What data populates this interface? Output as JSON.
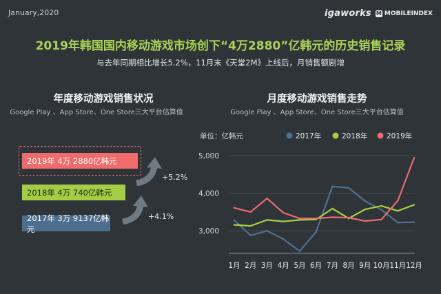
{
  "header": {
    "date": "January,2020",
    "brand_primary": "igaworks",
    "brand_badge": "M",
    "brand_secondary": "MOBILEINDEX"
  },
  "title": "2019年韩国国内移动游戏市场创下“4万2880”亿韩元的历史销售记录",
  "subtitle": "与去年同期相比增长5.2%，11月末《天堂2M》上线后，月销售额剧增",
  "left_panel": {
    "title": "年度移动游戏销售状况",
    "note": "Google Play 、App Store、One Store三大平台估算值",
    "bars": [
      {
        "label": "2019年 4万 2880亿韩元",
        "value": 42880,
        "color": "#f06b6b"
      },
      {
        "label": "2018年 4万 740亿韩元",
        "value": 40740,
        "color": "#a3cd45"
      },
      {
        "label": "2017年 3万 9137亿韩元",
        "value": 39137,
        "color": "#4d6e8f"
      }
    ],
    "growth": [
      "+5.2%",
      "+4.1%"
    ]
  },
  "right_panel": {
    "title": "月度移动游戏销售走势",
    "note": "Google Play 、App Store、One Store三大平台估算值"
  },
  "chart_data": {
    "type": "line",
    "unit_label": "单位：亿韩元",
    "legend_position": "top",
    "grid": true,
    "x": [
      "1月",
      "2月",
      "3月",
      "4月",
      "5月",
      "6月",
      "7月",
      "8月",
      "9月",
      "10月",
      "11月",
      "12月"
    ],
    "ylim": [
      2400,
      5200
    ],
    "yticks": [
      3000,
      4000,
      5000
    ],
    "ytick_labels": [
      "3,000",
      "4,000",
      "5,000"
    ],
    "series": [
      {
        "name": "2017年",
        "color": "#4f7191",
        "values": [
          3280,
          2880,
          3000,
          2780,
          2460,
          2970,
          4180,
          4140,
          3790,
          3560,
          3220,
          3230
        ]
      },
      {
        "name": "2018年",
        "color": "#a7d046",
        "values": [
          3160,
          3130,
          3290,
          3250,
          3290,
          3300,
          3590,
          3330,
          3570,
          3660,
          3530,
          3690
        ]
      },
      {
        "name": "2019年",
        "color": "#ee6b6f",
        "values": [
          3610,
          3500,
          3860,
          3480,
          3330,
          3330,
          3360,
          3350,
          3260,
          3300,
          3800,
          4940
        ]
      }
    ]
  }
}
